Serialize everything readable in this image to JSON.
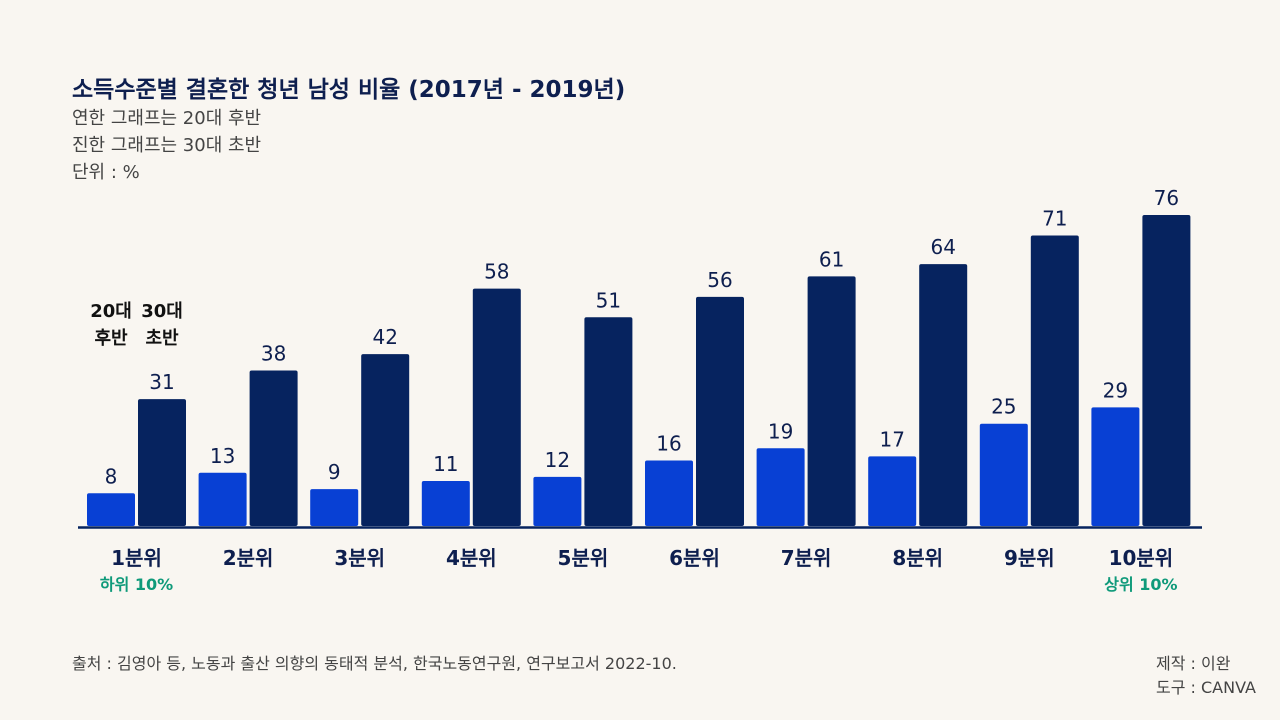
{
  "title": "소득수준별 결혼한 청년 남성 비율 (2017년 - 2019년)",
  "subtitles": [
    "연한 그래프는 20대 후반",
    "진한 그래프는 30대 초반",
    "단위 : %"
  ],
  "colors": {
    "series1": "#0840d4",
    "series2": "#06235f",
    "accent": "#0f9a7a",
    "axis": "#06235f"
  },
  "legend": {
    "s1": [
      "20대",
      "후반"
    ],
    "s2": [
      "30대",
      "초반"
    ]
  },
  "chart_data": {
    "type": "bar",
    "categories": [
      "1분위",
      "2분위",
      "3분위",
      "4분위",
      "5분위",
      "6분위",
      "7분위",
      "8분위",
      "9분위",
      "10분위"
    ],
    "series": [
      {
        "name": "20대 후반",
        "values": [
          8,
          13,
          9,
          11,
          12,
          16,
          19,
          17,
          25,
          29
        ]
      },
      {
        "name": "30대 초반",
        "values": [
          31,
          38,
          42,
          58,
          51,
          56,
          61,
          64,
          71,
          76
        ]
      }
    ],
    "sublabels": {
      "0": "하위 10%",
      "9": "상위 10%"
    },
    "ylim": [
      0,
      76
    ],
    "grid": false
  },
  "footer": {
    "source": "출처 : 김영아 등, 노동과 출산 의향의 동태적 분석, 한국노동연구원, 연구보고서 2022-10.",
    "maker": "제작 : 이완",
    "tool": "도구 : CANVA"
  }
}
